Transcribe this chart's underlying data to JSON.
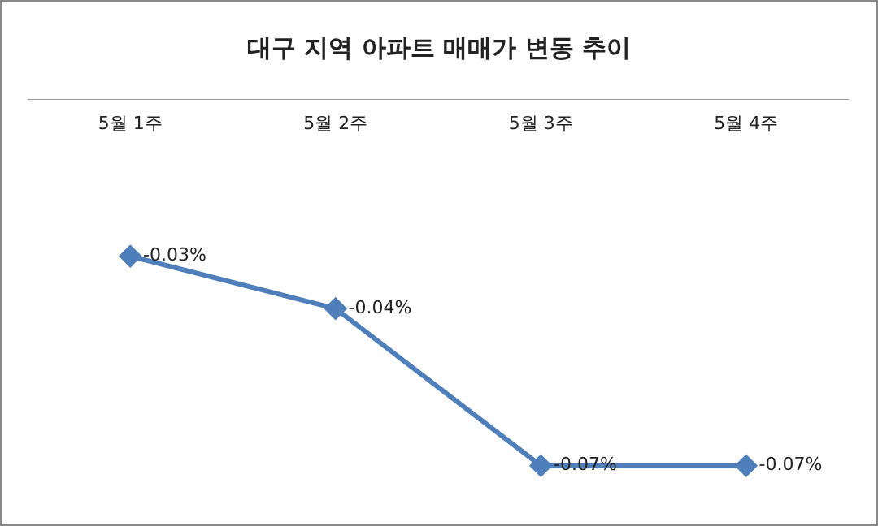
{
  "chart_data": {
    "type": "line",
    "title": "대구 지역 아파트 매매가 변동 추이",
    "categories": [
      "5월 1주",
      "5월 2주",
      "5월 3주",
      "5월 4주"
    ],
    "series": [
      {
        "color": "#4f7fba",
        "values": [
          -0.03,
          -0.04,
          -0.07,
          -0.07
        ],
        "value_labels": [
          "-0.03%",
          "-0.04%",
          "-0.07%",
          "-0.07%"
        ]
      }
    ],
    "marker": "diamond",
    "line_style": "solid"
  }
}
